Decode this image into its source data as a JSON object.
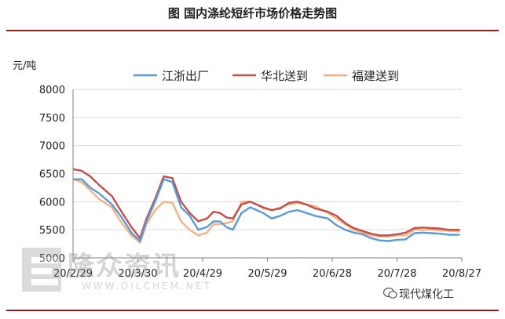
{
  "header": {
    "title": "图  国内涤纶短纤市场价格走势图"
  },
  "badge": {
    "label": "现代煤化工",
    "icon": "wechat-icon"
  },
  "watermark": {
    "cn": "隆众资讯",
    "en": "WWW.OILCHEM.NET"
  },
  "colors": {
    "rule": "#9c1c1c",
    "jiangzhe": "#5b9bd5",
    "huabei": "#c0504d",
    "fujian": "#f4b183",
    "axis": "#808080",
    "grid": "#d9d9d9"
  },
  "chart_data": {
    "type": "line",
    "ylabel": "元/吨",
    "ylim": [
      5000,
      8000
    ],
    "yticks": [
      5000,
      5500,
      6000,
      6500,
      7000,
      7500,
      8000
    ],
    "xlim": [
      0,
      180
    ],
    "xticks": [
      {
        "label": "20/2/29",
        "day": 0
      },
      {
        "label": "20/3/30",
        "day": 30
      },
      {
        "label": "20/4/29",
        "day": 60
      },
      {
        "label": "20/5/29",
        "day": 90
      },
      {
        "label": "20/6/28",
        "day": 120
      },
      {
        "label": "20/7/28",
        "day": 150
      },
      {
        "label": "20/8/27",
        "day": 180
      }
    ],
    "legend_position": "top",
    "series": [
      {
        "name": "江浙出厂",
        "points": [
          [
            0,
            6400
          ],
          [
            4,
            6400
          ],
          [
            8,
            6250
          ],
          [
            12,
            6150
          ],
          [
            18,
            5950
          ],
          [
            22,
            5750
          ],
          [
            27,
            5450
          ],
          [
            31,
            5300
          ],
          [
            34,
            5650
          ],
          [
            38,
            6000
          ],
          [
            42,
            6400
          ],
          [
            46,
            6350
          ],
          [
            50,
            5900
          ],
          [
            54,
            5750
          ],
          [
            58,
            5500
          ],
          [
            62,
            5550
          ],
          [
            65,
            5650
          ],
          [
            68,
            5650
          ],
          [
            71,
            5550
          ],
          [
            74,
            5500
          ],
          [
            78,
            5800
          ],
          [
            82,
            5900
          ],
          [
            85,
            5850
          ],
          [
            88,
            5800
          ],
          [
            92,
            5700
          ],
          [
            96,
            5750
          ],
          [
            100,
            5820
          ],
          [
            104,
            5850
          ],
          [
            108,
            5800
          ],
          [
            112,
            5750
          ],
          [
            118,
            5700
          ],
          [
            122,
            5580
          ],
          [
            126,
            5500
          ],
          [
            130,
            5450
          ],
          [
            134,
            5420
          ],
          [
            138,
            5350
          ],
          [
            142,
            5310
          ],
          [
            146,
            5300
          ],
          [
            150,
            5320
          ],
          [
            154,
            5330
          ],
          [
            158,
            5440
          ],
          [
            162,
            5450
          ],
          [
            166,
            5440
          ],
          [
            170,
            5430
          ],
          [
            174,
            5410
          ],
          [
            179,
            5410
          ]
        ]
      },
      {
        "name": "华北送到",
        "points": [
          [
            0,
            6580
          ],
          [
            4,
            6550
          ],
          [
            8,
            6450
          ],
          [
            12,
            6300
          ],
          [
            18,
            6100
          ],
          [
            22,
            5850
          ],
          [
            27,
            5550
          ],
          [
            31,
            5350
          ],
          [
            34,
            5700
          ],
          [
            38,
            6050
          ],
          [
            42,
            6450
          ],
          [
            46,
            6420
          ],
          [
            50,
            6000
          ],
          [
            54,
            5800
          ],
          [
            58,
            5650
          ],
          [
            62,
            5700
          ],
          [
            65,
            5820
          ],
          [
            68,
            5800
          ],
          [
            71,
            5720
          ],
          [
            74,
            5700
          ],
          [
            78,
            5950
          ],
          [
            82,
            6000
          ],
          [
            85,
            5950
          ],
          [
            88,
            5900
          ],
          [
            92,
            5850
          ],
          [
            96,
            5880
          ],
          [
            100,
            5980
          ],
          [
            104,
            6000
          ],
          [
            108,
            5950
          ],
          [
            112,
            5880
          ],
          [
            118,
            5820
          ],
          [
            122,
            5750
          ],
          [
            126,
            5620
          ],
          [
            130,
            5530
          ],
          [
            134,
            5480
          ],
          [
            138,
            5430
          ],
          [
            142,
            5400
          ],
          [
            146,
            5400
          ],
          [
            150,
            5420
          ],
          [
            154,
            5450
          ],
          [
            158,
            5530
          ],
          [
            162,
            5540
          ],
          [
            166,
            5530
          ],
          [
            170,
            5520
          ],
          [
            174,
            5500
          ],
          [
            179,
            5500
          ]
        ]
      },
      {
        "name": "福建送到",
        "points": [
          [
            0,
            6400
          ],
          [
            4,
            6350
          ],
          [
            8,
            6200
          ],
          [
            12,
            6050
          ],
          [
            18,
            5900
          ],
          [
            22,
            5650
          ],
          [
            27,
            5400
          ],
          [
            31,
            5270
          ],
          [
            34,
            5600
          ],
          [
            38,
            5850
          ],
          [
            42,
            6000
          ],
          [
            46,
            5980
          ],
          [
            50,
            5650
          ],
          [
            54,
            5500
          ],
          [
            58,
            5400
          ],
          [
            62,
            5450
          ],
          [
            65,
            5600
          ],
          [
            68,
            5600
          ],
          [
            71,
            5620
          ],
          [
            74,
            5650
          ],
          [
            78,
            6000
          ],
          [
            82,
            6000
          ],
          [
            85,
            5950
          ],
          [
            88,
            5880
          ],
          [
            92,
            5850
          ],
          [
            96,
            5900
          ],
          [
            100,
            5950
          ],
          [
            104,
            5980
          ],
          [
            108,
            5950
          ],
          [
            112,
            5920
          ],
          [
            118,
            5800
          ],
          [
            122,
            5700
          ],
          [
            126,
            5600
          ],
          [
            130,
            5500
          ],
          [
            134,
            5450
          ],
          [
            138,
            5400
          ],
          [
            142,
            5380
          ],
          [
            146,
            5380
          ],
          [
            150,
            5400
          ],
          [
            154,
            5400
          ],
          [
            158,
            5500
          ],
          [
            162,
            5500
          ],
          [
            166,
            5500
          ],
          [
            170,
            5490
          ],
          [
            174,
            5480
          ],
          [
            179,
            5470
          ]
        ]
      }
    ]
  }
}
